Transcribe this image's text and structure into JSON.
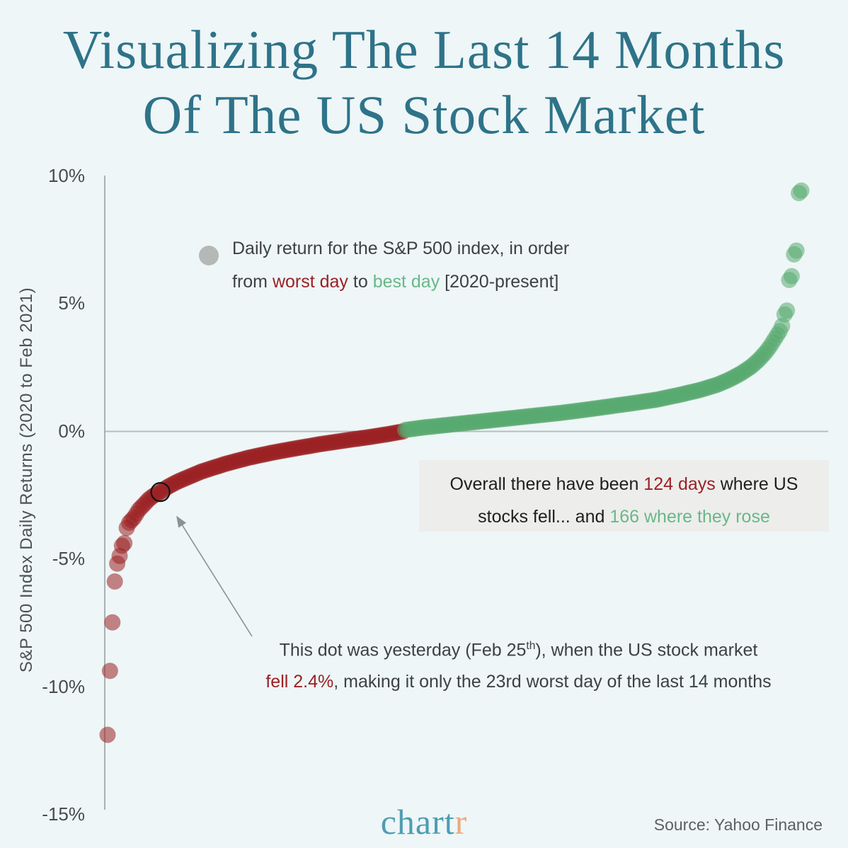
{
  "palette": {
    "dark": "#3c4242",
    "red": "#9b2125",
    "green": "#68b888",
    "logoTeal": "#4d9db2",
    "logoOrange": "#eca97c"
  },
  "title": {
    "line1": "Visualizing The Last 14 Months",
    "line2": "Of The US Stock Market"
  },
  "y_axis": {
    "label": "S&P 500 Index Daily Returns (2020 to Feb 2021)",
    "ticks": [
      {
        "label": "10%",
        "value": 10
      },
      {
        "label": "5%",
        "value": 5
      },
      {
        "label": "0%",
        "value": 0
      },
      {
        "label": "-5%",
        "value": -5
      },
      {
        "label": "-10%",
        "value": -10
      },
      {
        "label": "-15%",
        "value": -15
      }
    ]
  },
  "legend": {
    "line1": [
      {
        "t": "Daily return for the S&P 500 index, in order"
      }
    ],
    "line2": [
      {
        "t": "from "
      },
      {
        "t": "worst day",
        "c": "red"
      },
      {
        "t": " to "
      },
      {
        "t": "best day",
        "c": "green"
      },
      {
        "t": " [2020-present]"
      }
    ]
  },
  "callout_box": {
    "line1": [
      {
        "t": "Overall there have been "
      },
      {
        "t": "124 days",
        "c": "red"
      },
      {
        "t": " where US"
      }
    ],
    "line2": [
      {
        "t": "stocks fell... and "
      },
      {
        "t": "166 where they rose",
        "c": "green"
      }
    ]
  },
  "dot_annotation": {
    "line1": [
      {
        "t": "This dot was yesterday (Feb 25"
      },
      {
        "t": "th",
        "sup": true
      },
      {
        "t": "), when the US stock market"
      }
    ],
    "line2": [
      {
        "t": "fell 2.4%",
        "c": "red"
      },
      {
        "t": ", making it only the 23rd worst  day of the last 14 months"
      }
    ]
  },
  "footer": {
    "logo": [
      {
        "t": "chart",
        "c": "logoTeal"
      },
      {
        "t": "r",
        "c": "logoOrange"
      }
    ],
    "source": "Source: Yahoo Finance"
  },
  "chart_data": {
    "type": "scatter",
    "title": "Visualizing The Last 14 Months Of The US Stock Market",
    "ylabel": "S&P 500 Index Daily Returns (2020 to Feb 2021)",
    "x_meaning": "trading days ranked in ascending order of daily return, worst day (rank 1) to best day (rank 290)",
    "ylim": [
      -15,
      10
    ],
    "y_ticks": [
      10,
      5,
      0,
      -5,
      -10,
      -15
    ],
    "grid": "zero-line only",
    "legend_position": "upper-left inside plot",
    "n_days_total": 290,
    "n_days_down": 124,
    "n_days_up": 166,
    "down_color": "#9b2023",
    "up_color": "#58aa70",
    "dot_opacity": 0.55,
    "highlight": {
      "rank": 23,
      "return_pct": -2.4,
      "date": "Feb 25"
    },
    "sorted_daily_returns_control_points": [
      [
        1,
        -11.9
      ],
      [
        2,
        -9.4
      ],
      [
        3,
        -7.5
      ],
      [
        4,
        -5.9
      ],
      [
        5,
        -5.2
      ],
      [
        6,
        -4.9
      ],
      [
        7,
        -4.5
      ],
      [
        8,
        -4.4
      ],
      [
        9,
        -3.8
      ],
      [
        10,
        -3.6
      ],
      [
        12,
        -3.4
      ],
      [
        14,
        -3.1
      ],
      [
        16,
        -2.9
      ],
      [
        18,
        -2.7
      ],
      [
        20,
        -2.55
      ],
      [
        23,
        -2.4
      ],
      [
        26,
        -2.2
      ],
      [
        30,
        -2.0
      ],
      [
        35,
        -1.8
      ],
      [
        40,
        -1.6
      ],
      [
        45,
        -1.45
      ],
      [
        50,
        -1.3
      ],
      [
        60,
        -1.05
      ],
      [
        70,
        -0.85
      ],
      [
        80,
        -0.68
      ],
      [
        90,
        -0.52
      ],
      [
        100,
        -0.38
      ],
      [
        110,
        -0.25
      ],
      [
        118,
        -0.13
      ],
      [
        124,
        -0.03
      ],
      [
        125,
        0.03
      ],
      [
        132,
        0.12
      ],
      [
        140,
        0.2
      ],
      [
        150,
        0.3
      ],
      [
        160,
        0.4
      ],
      [
        170,
        0.5
      ],
      [
        180,
        0.6
      ],
      [
        190,
        0.7
      ],
      [
        200,
        0.82
      ],
      [
        210,
        0.95
      ],
      [
        220,
        1.08
      ],
      [
        230,
        1.22
      ],
      [
        240,
        1.42
      ],
      [
        248,
        1.6
      ],
      [
        255,
        1.8
      ],
      [
        260,
        2.0
      ],
      [
        265,
        2.25
      ],
      [
        269,
        2.5
      ],
      [
        272,
        2.75
      ],
      [
        275,
        3.05
      ],
      [
        277,
        3.3
      ],
      [
        279,
        3.6
      ],
      [
        281,
        3.9
      ],
      [
        282,
        4.1
      ],
      [
        283,
        4.55
      ],
      [
        284,
        4.7
      ],
      [
        285,
        5.9
      ],
      [
        286,
        6.05
      ],
      [
        287,
        6.9
      ],
      [
        288,
        7.05
      ],
      [
        289,
        9.3
      ],
      [
        290,
        9.4
      ]
    ]
  }
}
